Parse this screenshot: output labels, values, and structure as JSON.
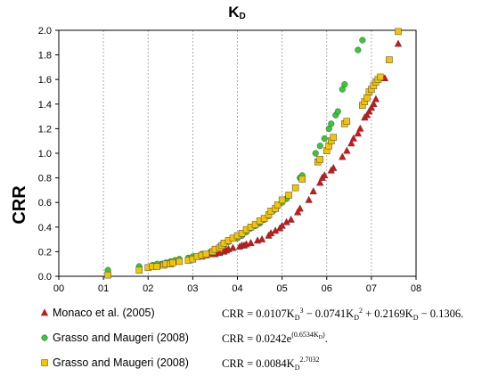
{
  "chart_data": {
    "type": "scatter",
    "title": "K",
    "title_sub": "D",
    "ylabel": "CRR",
    "xlabel": "",
    "xlim": [
      0,
      8
    ],
    "ylim": [
      0,
      2.0
    ],
    "x_ticks": [
      "00",
      "01",
      "02",
      "03",
      "04",
      "05",
      "06",
      "07",
      "08"
    ],
    "y_ticks": [
      "0.0",
      "0.2",
      "0.4",
      "0.6",
      "0.8",
      "1.0",
      "1.2",
      "1.4",
      "1.6",
      "1.8",
      "2.0"
    ],
    "grid": "vertical dotted",
    "legend_position": "bottom",
    "colors": {
      "monaco": "#dd1111",
      "grasso_circle": "#33cc33",
      "grasso_square": "#f5c400"
    },
    "series": [
      {
        "name": "Monaco et al. (2005)",
        "marker": "triangle",
        "color": "#dd1111",
        "equation_parts": [
          "CRR = 0.0107K",
          "D",
          "3",
          " − 0.0741K",
          "D",
          "2",
          " + 0.2169K",
          "D",
          " − 0.1306."
        ],
        "points": [
          [
            3.2,
            0.16
          ],
          [
            3.3,
            0.17
          ],
          [
            3.4,
            0.18
          ],
          [
            3.5,
            0.18
          ],
          [
            3.55,
            0.19
          ],
          [
            3.6,
            0.19
          ],
          [
            3.7,
            0.2
          ],
          [
            3.75,
            0.21
          ],
          [
            3.8,
            0.22
          ],
          [
            3.9,
            0.23
          ],
          [
            4.05,
            0.24
          ],
          [
            4.1,
            0.25
          ],
          [
            4.15,
            0.25
          ],
          [
            4.2,
            0.26
          ],
          [
            4.3,
            0.27
          ],
          [
            4.45,
            0.29
          ],
          [
            4.55,
            0.3
          ],
          [
            4.7,
            0.33
          ],
          [
            4.75,
            0.35
          ],
          [
            4.85,
            0.37
          ],
          [
            4.95,
            0.39
          ],
          [
            5.0,
            0.41
          ],
          [
            5.1,
            0.44
          ],
          [
            5.2,
            0.46
          ],
          [
            5.35,
            0.52
          ],
          [
            5.4,
            0.55
          ],
          [
            5.6,
            0.62
          ],
          [
            5.7,
            0.69
          ],
          [
            5.85,
            0.76
          ],
          [
            5.9,
            0.8
          ],
          [
            5.95,
            0.82
          ],
          [
            6.1,
            0.86
          ],
          [
            6.15,
            0.88
          ],
          [
            6.35,
            0.97
          ],
          [
            6.45,
            1.02
          ],
          [
            6.55,
            1.08
          ],
          [
            6.6,
            1.12
          ],
          [
            6.7,
            1.16
          ],
          [
            6.75,
            1.2
          ],
          [
            6.85,
            1.29
          ],
          [
            6.9,
            1.31
          ],
          [
            6.95,
            1.34
          ],
          [
            7.0,
            1.37
          ],
          [
            7.05,
            1.4
          ],
          [
            7.1,
            1.44
          ],
          [
            7.3,
            1.61
          ],
          [
            7.6,
            1.89
          ]
        ]
      },
      {
        "name": "Grasso and Maugeri (2008)",
        "marker": "circle",
        "color": "#33cc33",
        "equation_parts": [
          "CRR = 0.0242e",
          "(0.6534K",
          "D",
          ")",
          "."
        ],
        "points": [
          [
            1.1,
            0.05
          ],
          [
            1.8,
            0.08
          ],
          [
            2.1,
            0.09
          ],
          [
            2.2,
            0.1
          ],
          [
            2.3,
            0.1
          ],
          [
            2.4,
            0.11
          ],
          [
            2.5,
            0.12
          ],
          [
            2.6,
            0.13
          ],
          [
            2.7,
            0.14
          ],
          [
            2.9,
            0.15
          ],
          [
            3.0,
            0.16
          ],
          [
            3.2,
            0.18
          ],
          [
            3.4,
            0.2
          ],
          [
            3.5,
            0.22
          ],
          [
            3.6,
            0.24
          ],
          [
            3.7,
            0.26
          ],
          [
            3.8,
            0.28
          ],
          [
            4.0,
            0.31
          ],
          [
            4.1,
            0.33
          ],
          [
            4.2,
            0.36
          ],
          [
            4.3,
            0.39
          ],
          [
            4.4,
            0.41
          ],
          [
            4.5,
            0.43
          ],
          [
            4.6,
            0.46
          ],
          [
            4.7,
            0.49
          ],
          [
            4.8,
            0.53
          ],
          [
            4.9,
            0.57
          ],
          [
            5.0,
            0.6
          ],
          [
            5.1,
            0.63
          ],
          [
            5.4,
            0.8
          ],
          [
            5.45,
            0.82
          ],
          [
            5.75,
            1.0
          ],
          [
            5.85,
            1.06
          ],
          [
            5.95,
            1.12
          ],
          [
            6.05,
            1.2
          ],
          [
            6.1,
            1.24
          ],
          [
            6.2,
            1.31
          ],
          [
            6.25,
            1.34
          ],
          [
            6.35,
            1.52
          ],
          [
            6.4,
            1.56
          ],
          [
            6.7,
            1.84
          ],
          [
            6.8,
            1.92
          ]
        ]
      },
      {
        "name": "Grasso and Maugeri (2008)",
        "marker": "square",
        "color": "#f5c400",
        "equation_parts": [
          "CRR = 0.0084K",
          "D",
          "2.7032"
        ],
        "points": [
          [
            1.1,
            0.01
          ],
          [
            1.8,
            0.05
          ],
          [
            2.0,
            0.07
          ],
          [
            2.1,
            0.08
          ],
          [
            2.2,
            0.08
          ],
          [
            2.35,
            0.09
          ],
          [
            2.4,
            0.1
          ],
          [
            2.5,
            0.1
          ],
          [
            2.55,
            0.11
          ],
          [
            2.7,
            0.12
          ],
          [
            2.9,
            0.13
          ],
          [
            3.0,
            0.14
          ],
          [
            3.1,
            0.16
          ],
          [
            3.2,
            0.17
          ],
          [
            3.3,
            0.18
          ],
          [
            3.45,
            0.2
          ],
          [
            3.5,
            0.22
          ],
          [
            3.6,
            0.23
          ],
          [
            3.65,
            0.25
          ],
          [
            3.7,
            0.27
          ],
          [
            3.8,
            0.29
          ],
          [
            3.9,
            0.31
          ],
          [
            4.0,
            0.33
          ],
          [
            4.1,
            0.35
          ],
          [
            4.2,
            0.38
          ],
          [
            4.3,
            0.4
          ],
          [
            4.4,
            0.42
          ],
          [
            4.5,
            0.45
          ],
          [
            4.6,
            0.47
          ],
          [
            4.7,
            0.5
          ],
          [
            4.75,
            0.53
          ],
          [
            4.85,
            0.55
          ],
          [
            4.9,
            0.58
          ],
          [
            5.0,
            0.62
          ],
          [
            5.15,
            0.66
          ],
          [
            5.3,
            0.72
          ],
          [
            5.45,
            0.79
          ],
          [
            5.8,
            0.93
          ],
          [
            5.85,
            0.95
          ],
          [
            6.0,
            1.02
          ],
          [
            6.05,
            1.06
          ],
          [
            6.1,
            1.1
          ],
          [
            6.15,
            1.13
          ],
          [
            6.4,
            1.24
          ],
          [
            6.45,
            1.26
          ],
          [
            6.8,
            1.39
          ],
          [
            6.85,
            1.42
          ],
          [
            6.9,
            1.45
          ],
          [
            6.95,
            1.5
          ],
          [
            7.0,
            1.52
          ],
          [
            7.05,
            1.55
          ],
          [
            7.1,
            1.58
          ],
          [
            7.15,
            1.6
          ],
          [
            7.2,
            1.62
          ],
          [
            7.4,
            1.76
          ],
          [
            7.6,
            1.99
          ]
        ]
      }
    ]
  }
}
